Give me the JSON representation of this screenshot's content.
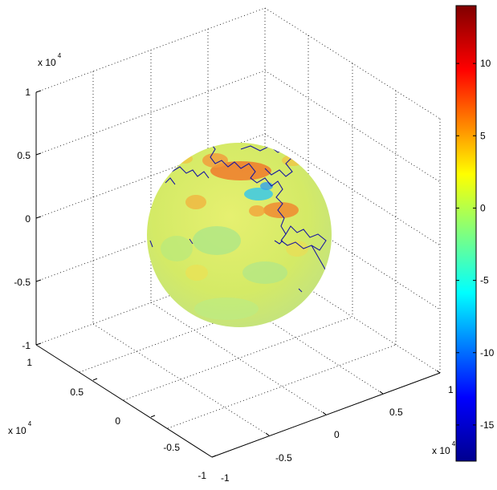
{
  "chart_data": {
    "type": "3d-surface",
    "x": {
      "ticks": [
        "-1",
        "-0.5",
        "0",
        "0.5",
        "1"
      ],
      "range": [
        -1,
        1
      ],
      "multiplier_base": "x 10",
      "multiplier_exp": "4"
    },
    "y": {
      "ticks": [
        "-1",
        "-0.5",
        "0",
        "0.5",
        "1"
      ],
      "range": [
        -1,
        1
      ],
      "multiplier_base": "x 10",
      "multiplier_exp": "4"
    },
    "z": {
      "ticks": [
        "-1",
        "-0.5",
        "0",
        "0.5",
        "1"
      ],
      "range": [
        -1,
        1
      ],
      "multiplier_base": "x 10",
      "multiplier_exp": "4"
    },
    "colorbar": {
      "ticks": [
        "10",
        "5",
        "0",
        "-5",
        "-10",
        "-15"
      ],
      "tick_values": [
        10,
        5,
        0,
        -5,
        -10,
        -15
      ],
      "range": [
        -17.5,
        14
      ],
      "colormap": "jet",
      "position": "right"
    },
    "grid": true,
    "colors": {
      "ocean": "#d7ea66",
      "coastline": "#1a1aa0",
      "jet_stops": [
        "#00008f",
        "#0000ff",
        "#00ffff",
        "#7fff7f",
        "#ffff00",
        "#ff0000",
        "#800000"
      ]
    }
  }
}
